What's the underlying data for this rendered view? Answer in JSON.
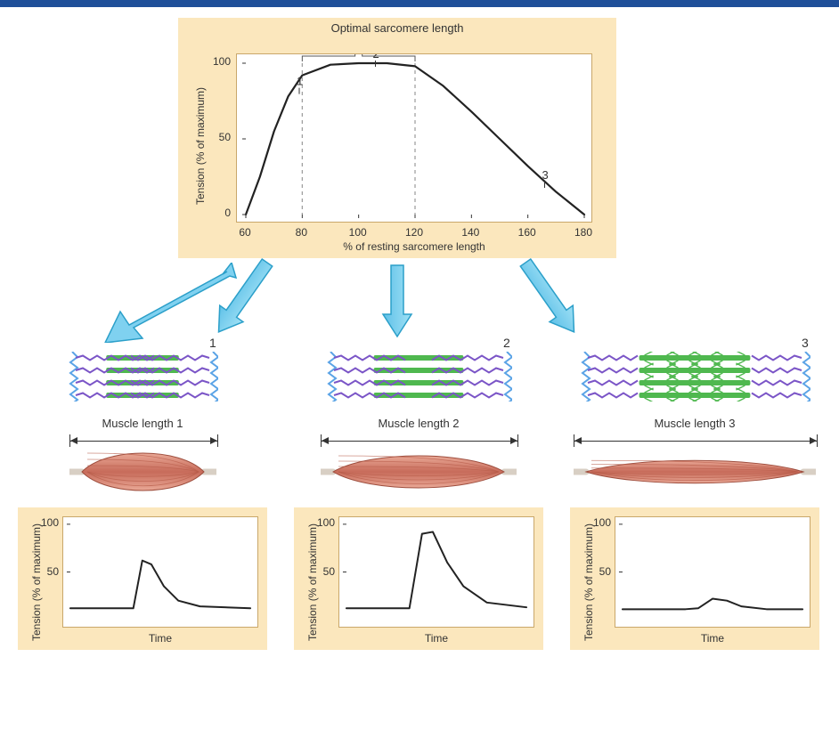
{
  "colors": {
    "panel_bg": "#fbe7bd",
    "chart_bg": "#ffffff",
    "chart_border": "#c9a76a",
    "curve": "#222222",
    "dashed": "#999999",
    "arrow_fill": "#7fd1f0",
    "arrow_stroke": "#2b9fc9",
    "zline": "#5aa3e6",
    "thick_filament": "#4fb84f",
    "thin_filament": "#7b55c7",
    "muscle_light": "#e9a896",
    "muscle_dark": "#c76b5a",
    "topbar": "#1f4f99"
  },
  "main_chart": {
    "title": "Optimal sarcomere length",
    "x_label": "% of resting sarcomere length",
    "y_label": "Tension (% of maximum)",
    "x_ticks": [
      60,
      80,
      100,
      120,
      140,
      160,
      180
    ],
    "y_ticks": [
      0,
      50,
      100
    ],
    "dashed_range": [
      80,
      120
    ],
    "markers": [
      {
        "id": "1",
        "x": 78,
        "y": 82
      },
      {
        "id": "2",
        "x": 105,
        "y": 100
      },
      {
        "id": "3",
        "x": 165,
        "y": 20
      }
    ],
    "curve_points": [
      {
        "x": 60,
        "y": 0
      },
      {
        "x": 65,
        "y": 25
      },
      {
        "x": 70,
        "y": 55
      },
      {
        "x": 75,
        "y": 78
      },
      {
        "x": 80,
        "y": 92
      },
      {
        "x": 90,
        "y": 99
      },
      {
        "x": 100,
        "y": 100
      },
      {
        "x": 110,
        "y": 100
      },
      {
        "x": 120,
        "y": 98
      },
      {
        "x": 130,
        "y": 85
      },
      {
        "x": 140,
        "y": 68
      },
      {
        "x": 150,
        "y": 50
      },
      {
        "x": 160,
        "y": 32
      },
      {
        "x": 170,
        "y": 15
      },
      {
        "x": 180,
        "y": 0
      }
    ]
  },
  "states": [
    {
      "id": "1",
      "sarc_label": "1",
      "muscle_label": "Muscle length 1",
      "sarcomere_width": 170,
      "actin_overlap": "full",
      "muscle_width": 165,
      "muscle_thickness": 56,
      "twitch": {
        "y_label": "Tension (% of maximum)",
        "x_label": "Time",
        "y_ticks": [
          50,
          100
        ],
        "peak": 62,
        "curve": [
          {
            "x": 0,
            "y": 12
          },
          {
            "x": 30,
            "y": 12
          },
          {
            "x": 35,
            "y": 12
          },
          {
            "x": 40,
            "y": 62
          },
          {
            "x": 45,
            "y": 58
          },
          {
            "x": 52,
            "y": 35
          },
          {
            "x": 60,
            "y": 20
          },
          {
            "x": 72,
            "y": 14
          },
          {
            "x": 100,
            "y": 12
          }
        ]
      }
    },
    {
      "id": "2",
      "sarc_label": "2",
      "muscle_label": "Muscle length 2",
      "sarcomere_width": 210,
      "actin_overlap": "optimal",
      "muscle_width": 220,
      "muscle_thickness": 48,
      "twitch": {
        "y_label": "Tension (% of maximum)",
        "x_label": "Time",
        "y_ticks": [
          50,
          100
        ],
        "peak": 92,
        "curve": [
          {
            "x": 0,
            "y": 12
          },
          {
            "x": 30,
            "y": 12
          },
          {
            "x": 35,
            "y": 12
          },
          {
            "x": 42,
            "y": 90
          },
          {
            "x": 48,
            "y": 92
          },
          {
            "x": 56,
            "y": 60
          },
          {
            "x": 65,
            "y": 35
          },
          {
            "x": 78,
            "y": 18
          },
          {
            "x": 100,
            "y": 13
          }
        ]
      }
    },
    {
      "id": "3",
      "sarc_label": "3",
      "muscle_label": "Muscle length 3",
      "sarcomere_width": 260,
      "actin_overlap": "minimal",
      "muscle_width": 272,
      "muscle_thickness": 34,
      "twitch": {
        "y_label": "Tension (% of maximum)",
        "x_label": "Time",
        "y_ticks": [
          50,
          100
        ],
        "peak": 22,
        "curve": [
          {
            "x": 0,
            "y": 11
          },
          {
            "x": 35,
            "y": 11
          },
          {
            "x": 42,
            "y": 12
          },
          {
            "x": 50,
            "y": 22
          },
          {
            "x": 58,
            "y": 20
          },
          {
            "x": 66,
            "y": 14
          },
          {
            "x": 80,
            "y": 11
          },
          {
            "x": 100,
            "y": 11
          }
        ]
      }
    }
  ]
}
